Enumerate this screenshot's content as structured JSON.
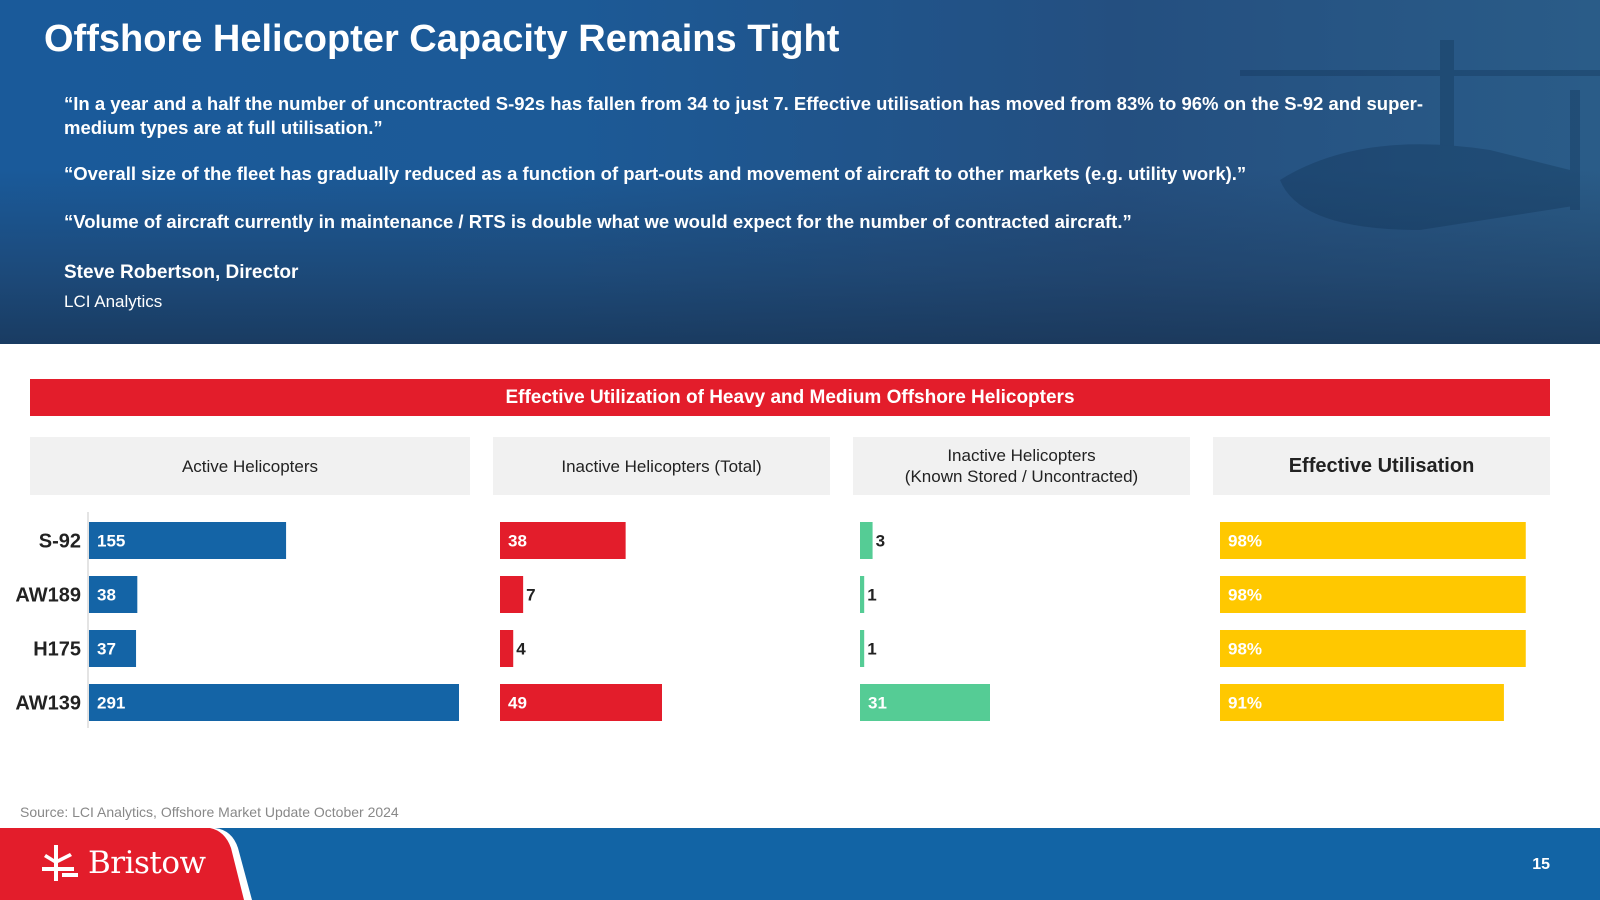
{
  "slide": {
    "title": "Offshore Helicopter Capacity Remains Tight",
    "quotes": [
      "“In a year and a half the number of uncontracted S-92s has fallen from 34 to just 7. Effective utilisation has moved from 83% to 96% on the S-92 and super-medium types are at full utilisation.”",
      "“Overall size of the fleet has gradually reduced as a function of part-outs and movement of aircraft to other markets (e.g. utility work).”",
      "“Volume of aircraft currently in maintenance / RTS is double what we would expect for the number of contracted aircraft.”"
    ],
    "author": "Steve Robertson, Director",
    "organization": "LCI Analytics",
    "source": "Source: LCI Analytics, Offshore Market Update October 2024",
    "page_number": "15",
    "logo_text": "Bristow"
  },
  "colors": {
    "active": "#1464a6",
    "inactive_total": "#e31d2b",
    "inactive_stored": "#55cc95",
    "utilisation": "#ffc800",
    "banner": "#e31d2b",
    "footer": "#1264a5"
  },
  "chart_data": {
    "type": "bar",
    "title": "Effective Utilization of Heavy and Medium Offshore Helicopters",
    "orientation": "horizontal",
    "categories": [
      "S-92",
      "AW189",
      "H175",
      "AW139"
    ],
    "series": [
      {
        "name": "Active Helicopters",
        "values": [
          155,
          38,
          37,
          291
        ],
        "labels": [
          "155",
          "38",
          "37",
          "291"
        ]
      },
      {
        "name": "Inactive Helicopters (Total)",
        "values": [
          38,
          7,
          4,
          49
        ],
        "labels": [
          "38",
          "7",
          "4",
          "49"
        ]
      },
      {
        "name": "Inactive Helicopters\n(Known Stored / Uncontracted)",
        "values": [
          3,
          1,
          1,
          31
        ],
        "labels": [
          "3",
          "1",
          "1",
          "31"
        ]
      },
      {
        "name": "Effective Utilisation",
        "values": [
          98,
          98,
          98,
          91
        ],
        "labels": [
          "98%",
          "98%",
          "98%",
          "91%"
        ]
      }
    ]
  }
}
